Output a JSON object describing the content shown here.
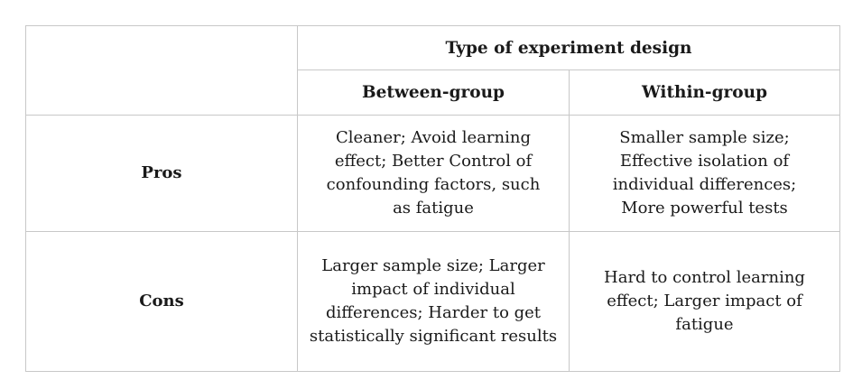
{
  "table": {
    "header": {
      "group_title": "Type of experiment design",
      "col_between": "Between-group",
      "col_within": "Within-group"
    },
    "rows": [
      {
        "label": "Pros",
        "between": "Cleaner; Avoid learning effect; Better Control of confounding factors, such as fatigue",
        "within": "Smaller sample size; Effective isolation of individual differences; More powerful tests"
      },
      {
        "label": "Cons",
        "between": "Larger sample size; Larger impact of individual differences; Harder to get statistically significant results",
        "within": "Hard to control learning effect; Larger impact of fatigue"
      }
    ]
  }
}
